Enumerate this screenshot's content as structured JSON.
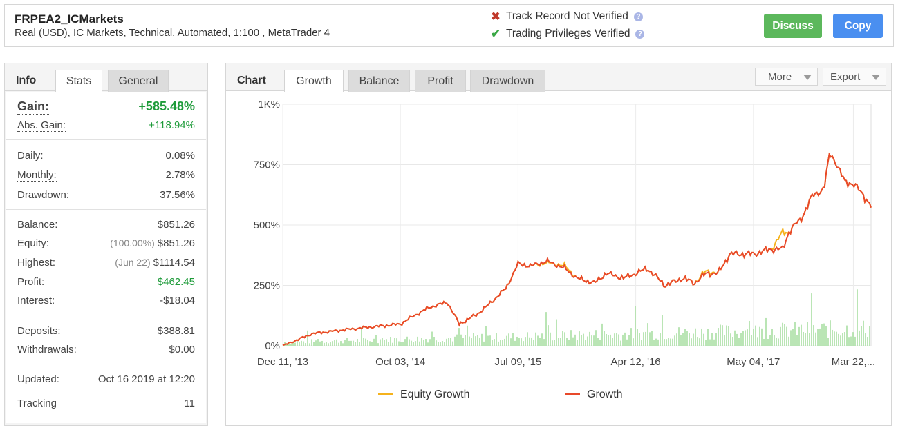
{
  "account": {
    "name": "FRPEA2_ICMarkets",
    "type_prefix": "Real (USD),",
    "broker": "IC Markets",
    "details": ", Technical, Automated, 1:100 , MetaTrader 4"
  },
  "verification": {
    "track_record": "Track Record Not Verified",
    "trading_privileges": "Trading Privileges Verified",
    "help_glyph": "?"
  },
  "actions": {
    "discuss": "Discuss",
    "copy": "Copy"
  },
  "left_tabs": {
    "heading": "Info",
    "stats": "Stats",
    "general": "General"
  },
  "stats": {
    "gain": {
      "label": "Gain:",
      "value": "+585.48%"
    },
    "abs_gain": {
      "label": "Abs. Gain:",
      "value": "+118.94%"
    },
    "daily": {
      "label": "Daily:",
      "value": "0.08%"
    },
    "monthly": {
      "label": "Monthly:",
      "value": "2.78%"
    },
    "drawdown": {
      "label": "Drawdown:",
      "value": "37.56%"
    },
    "balance": {
      "label": "Balance:",
      "value": "$851.26"
    },
    "equity": {
      "label": "Equity:",
      "prefix": "(100.00%)",
      "value": "$851.26"
    },
    "highest": {
      "label": "Highest:",
      "prefix": "(Jun 22)",
      "value": "$1114.54"
    },
    "profit": {
      "label": "Profit:",
      "value": "$462.45"
    },
    "interest": {
      "label": "Interest:",
      "value": "-$18.04"
    },
    "deposits": {
      "label": "Deposits:",
      "value": "$388.81"
    },
    "withdrawals": {
      "label": "Withdrawals:",
      "value": "$0.00"
    },
    "updated": {
      "label": "Updated:",
      "value": "Oct 16 2019 at 12:20"
    },
    "tracking": {
      "label": "Tracking",
      "value": "11"
    }
  },
  "chart_tabs": {
    "heading": "Chart",
    "growth": "Growth",
    "balance": "Balance",
    "profit": "Profit",
    "drawdown": "Drawdown",
    "more": "More",
    "export": "Export"
  },
  "colors": {
    "growth": "#e8492a",
    "equity": "#f5b21c",
    "volume": "#aee0a8",
    "accent_green": "#5cb85c",
    "accent_blue": "#4a8ff0"
  },
  "chart_data": {
    "type": "line",
    "y_ticks": [
      "0%",
      "250%",
      "500%",
      "750%",
      "1K%"
    ],
    "ylim": [
      0,
      1000
    ],
    "x_ticks": [
      "Dec 11, '13",
      "Oct 03, '14",
      "Jul 09, '15",
      "Apr 12, '16",
      "May 04, '17",
      "Mar 22,..."
    ],
    "x": [
      0,
      0.05,
      0.1,
      0.15,
      0.2,
      0.22,
      0.25,
      0.28,
      0.3,
      0.33,
      0.35,
      0.38,
      0.4,
      0.42,
      0.45,
      0.48,
      0.5,
      0.53,
      0.55,
      0.58,
      0.6,
      0.62,
      0.65,
      0.68,
      0.7,
      0.72,
      0.74,
      0.76,
      0.8,
      0.83,
      0.85,
      0.86,
      0.87,
      0.88,
      0.9,
      0.92,
      0.93,
      0.94,
      0.955,
      0.97,
      0.985,
      1.0
    ],
    "series": [
      {
        "name": "Growth",
        "values": [
          0,
          50,
          65,
          78,
          90,
          120,
          160,
          180,
          90,
          130,
          170,
          240,
          340,
          330,
          350,
          320,
          280,
          260,
          300,
          280,
          300,
          320,
          250,
          280,
          260,
          300,
          300,
          380,
          380,
          400,
          400,
          470,
          500,
          520,
          620,
          650,
          800,
          760,
          680,
          670,
          630,
          580
        ]
      },
      {
        "name": "Equity Growth",
        "values": [
          0,
          50,
          65,
          78,
          90,
          120,
          160,
          180,
          90,
          130,
          170,
          240,
          340,
          330,
          345,
          330,
          280,
          260,
          300,
          280,
          300,
          320,
          250,
          280,
          260,
          310,
          300,
          380,
          380,
          400,
          470,
          470,
          500,
          520,
          620,
          650,
          800,
          760,
          680,
          670,
          630,
          580
        ]
      }
    ],
    "legend": [
      "Equity Growth",
      "Growth"
    ],
    "legend_position": "bottom",
    "grid": true
  }
}
